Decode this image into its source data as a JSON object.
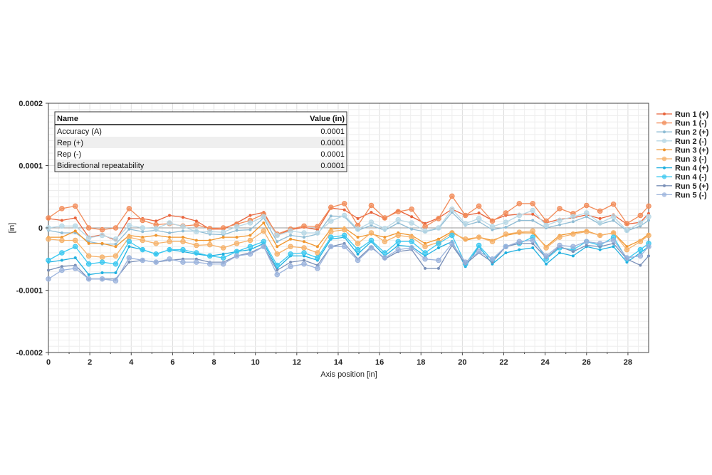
{
  "chart_data": {
    "type": "line",
    "title": "",
    "xlabel": "Axis position [in]",
    "ylabel": "[in]",
    "xlim": [
      0,
      29
    ],
    "ylim": [
      -0.0002,
      0.0002
    ],
    "x_ticks": [
      0,
      2,
      4,
      6,
      8,
      10,
      12,
      14,
      16,
      18,
      20,
      22,
      24,
      26,
      28
    ],
    "x_tick_labels": [
      "0",
      "2",
      "4",
      "6",
      "8",
      "10",
      "12",
      "14",
      "16",
      "18",
      "20",
      "22",
      "24",
      "26",
      "28"
    ],
    "y_ticks": [
      -0.0002,
      -0.0001,
      0,
      0.0001,
      0.0002
    ],
    "y_tick_labels": [
      "-0.0002",
      "-0.0001",
      "0",
      "0.0001",
      "0.0002"
    ],
    "grid": true,
    "legend_position": "right",
    "x": [
      0,
      0.65,
      1.3,
      1.95,
      2.6,
      3.25,
      3.9,
      4.55,
      5.2,
      5.85,
      6.5,
      7.15,
      7.8,
      8.45,
      9.1,
      9.75,
      10.4,
      11.05,
      11.7,
      12.35,
      13,
      13.65,
      14.3,
      14.95,
      15.6,
      16.25,
      16.9,
      17.55,
      18.2,
      18.85,
      19.5,
      20.15,
      20.8,
      21.45,
      22.1,
      22.75,
      23.4,
      24.05,
      24.7,
      25.35,
      26,
      26.65,
      27.3,
      27.95,
      28.6,
      29
    ],
    "series": [
      {
        "name": "Run 1 (+)",
        "color": "#e8643c",
        "marker": "small",
        "values": [
          1.5e-05,
          1.2e-05,
          1.6e-05,
          -1.5e-05,
          -1.1e-05,
          -2e-05,
          1.5e-05,
          1.5e-05,
          1.1e-05,
          2e-05,
          1.7e-05,
          1.1e-05,
          -2e-06,
          -2e-06,
          8e-06,
          2e-05,
          2.5e-05,
          -1.2e-05,
          -3e-06,
          1e-06,
          -3e-06,
          3.2e-05,
          2.9e-05,
          1.5e-05,
          2.5e-05,
          1.5e-05,
          2.8e-05,
          1.8e-05,
          7e-06,
          1.6e-05,
          3e-05,
          2e-05,
          2.4e-05,
          1.2e-05,
          2e-05,
          2.2e-05,
          2.2e-05,
          8e-06,
          1.4e-05,
          1.6e-05,
          2.1e-05,
          1.5e-05,
          2.1e-05,
          6e-06,
          9e-06,
          2.3e-05
        ]
      },
      {
        "name": "Run 1 (-)",
        "color": "#f28c5a",
        "marker": "large",
        "values": [
          1.6e-05,
          3.1e-05,
          3.5e-05,
          0.0,
          -3e-06,
          0.0,
          3.1e-05,
          1.2e-05,
          5e-06,
          7e-06,
          3e-06,
          5e-06,
          -1e-06,
          0.0,
          6e-06,
          1.2e-05,
          2.2e-05,
          -1e-05,
          -2e-06,
          3e-06,
          2e-06,
          3.3e-05,
          3.9e-05,
          4e-06,
          3.6e-05,
          1.6e-05,
          2.6e-05,
          3e-05,
          2e-06,
          1.5e-05,
          5.1e-05,
          2e-05,
          3.5e-05,
          1.1e-05,
          2.4e-05,
          3.9e-05,
          3.9e-05,
          1.1e-05,
          3.1e-05,
          2.3e-05,
          3.6e-05,
          2.7e-05,
          3.8e-05,
          7e-06,
          2e-05,
          3.5e-05
        ]
      },
      {
        "name": "Run 2 (+)",
        "color": "#8fbcd4",
        "marker": "small",
        "values": [
          -4e-06,
          -8e-06,
          -8e-06,
          -2.2e-05,
          -2.6e-05,
          -2.6e-05,
          -2e-06,
          -6e-06,
          -4e-06,
          -8e-06,
          -5e-06,
          -5e-06,
          -1e-05,
          -1.1e-05,
          -4e-06,
          -3e-06,
          1.6e-05,
          -2.2e-05,
          -1.2e-05,
          -1.5e-05,
          -1e-05,
          1.9e-05,
          1.8e-05,
          -4e-06,
          4e-06,
          -4e-06,
          8e-06,
          -2e-06,
          -6e-06,
          -1e-06,
          2.5e-05,
          4e-06,
          1e-05,
          -3e-06,
          1e-06,
          1.2e-05,
          1.2e-05,
          0.0,
          5e-06,
          1e-05,
          1.8e-05,
          6e-06,
          1.2e-05,
          -5e-06,
          3e-06,
          1.2e-05
        ]
      },
      {
        "name": "Run 2 (-)",
        "color": "#b8d8e6",
        "marker": "large",
        "values": [
          0.0,
          3e-06,
          3e-06,
          -1.6e-05,
          -1.2e-05,
          -1.8e-05,
          4e-06,
          0.0,
          -1e-06,
          8e-06,
          2e-06,
          -6e-06,
          -6e-06,
          -7e-06,
          2e-06,
          8e-06,
          1.8e-05,
          -1.2e-05,
          -5e-06,
          -8e-06,
          -8e-06,
          1.1e-05,
          2e-05,
          -2e-06,
          9e-06,
          -1e-06,
          1.3e-05,
          8e-06,
          -5e-06,
          0.0,
          3e-05,
          7e-06,
          1.5e-05,
          2e-06,
          9e-06,
          2e-05,
          2.8e-05,
          4e-06,
          1.2e-05,
          1.8e-05,
          2.4e-05,
          8e-06,
          1.8e-05,
          -4e-06,
          8e-06,
          1.8e-05
        ]
      },
      {
        "name": "Run 3 (+)",
        "color": "#f0962e",
        "marker": "small",
        "values": [
          -1.5e-05,
          -1.5e-05,
          -5e-06,
          -2.5e-05,
          -2.5e-05,
          -3e-05,
          -1.2e-05,
          -1.5e-05,
          -1.2e-05,
          -1.5e-05,
          -1.5e-05,
          -2e-05,
          -2e-05,
          -1.5e-05,
          -1.5e-05,
          -1.2e-05,
          8e-06,
          -3e-05,
          -1.8e-05,
          -2.2e-05,
          -3e-05,
          -2e-06,
          0.0,
          -1.5e-05,
          -1e-05,
          -1.5e-05,
          -8e-06,
          -1.2e-05,
          -2.5e-05,
          -1.8e-05,
          -6e-06,
          -2e-05,
          -1.5e-05,
          -2e-05,
          -1.2e-05,
          -8e-06,
          -8e-06,
          -3e-05,
          -1.2e-05,
          -8e-06,
          -5e-06,
          -1.2e-05,
          -8e-06,
          -3e-05,
          -2e-05,
          -1e-05
        ]
      },
      {
        "name": "Run 3 (-)",
        "color": "#f5b26b",
        "marker": "large",
        "values": [
          -1.8e-05,
          -2e-05,
          -2e-05,
          -4.5e-05,
          -4.7e-05,
          -4.5e-05,
          -1.5e-05,
          -2e-05,
          -2.5e-05,
          -2.2e-05,
          -2.2e-05,
          -2.8e-05,
          -2.7e-05,
          -3.2e-05,
          -2.5e-05,
          -2e-05,
          -5e-06,
          -4.2e-05,
          -3e-05,
          -3.2e-05,
          -4e-05,
          -6e-06,
          -3e-06,
          -2.5e-05,
          -8e-06,
          -2.2e-05,
          -1.2e-05,
          -1.5e-05,
          -3e-05,
          -2.3e-05,
          -8e-06,
          -1.8e-05,
          -1.5e-05,
          -2.2e-05,
          -1e-05,
          -7e-06,
          -5e-06,
          -3.2e-05,
          -1.5e-05,
          -1e-05,
          -6e-06,
          -1.2e-05,
          -8e-06,
          -3.5e-05,
          -2.2e-05,
          -1.2e-05
        ]
      },
      {
        "name": "Run 4 (+)",
        "color": "#1fb0e0",
        "marker": "small",
        "values": [
          -5.5e-05,
          -5.2e-05,
          -4.8e-05,
          -7.5e-05,
          -7.2e-05,
          -7.2e-05,
          -3e-05,
          -3.5e-05,
          -4.2e-05,
          -3.5e-05,
          -3.8e-05,
          -4.2e-05,
          -4.5e-05,
          -4.2e-05,
          -3.8e-05,
          -3.5e-05,
          -2.5e-05,
          -6.5e-05,
          -4.5e-05,
          -4.5e-05,
          -5.2e-05,
          -1.8e-05,
          -1.5e-05,
          -4.2e-05,
          -2.2e-05,
          -4.5e-05,
          -2.8e-05,
          -3e-05,
          -4.5e-05,
          -3.2e-05,
          -2.2e-05,
          -6.2e-05,
          -3e-05,
          -5.8e-05,
          -4e-05,
          -3.5e-05,
          -3.2e-05,
          -5.8e-05,
          -4e-05,
          -4.5e-05,
          -3e-05,
          -3.5e-05,
          -3e-05,
          -5.5e-05,
          -4e-05,
          -3e-05
        ]
      },
      {
        "name": "Run 4 (-)",
        "color": "#3cc8f0",
        "marker": "large",
        "values": [
          -5.2e-05,
          -4e-05,
          -3e-05,
          -5.8e-05,
          -5.5e-05,
          -5.8e-05,
          -2.2e-05,
          -3.5e-05,
          -4.2e-05,
          -3.5e-05,
          -3.5e-05,
          -4e-05,
          -4.5e-05,
          -4.8e-05,
          -3.8e-05,
          -3e-05,
          -2.2e-05,
          -6e-05,
          -4.2e-05,
          -4e-05,
          -4.8e-05,
          -1.5e-05,
          -1.2e-05,
          -3.5e-05,
          -2e-05,
          -4e-05,
          -2.2e-05,
          -2.2e-05,
          -4e-05,
          -2.5e-05,
          -1.2e-05,
          -5.8e-05,
          -2.8e-05,
          -5.2e-05,
          -3e-05,
          -2.5e-05,
          -1.5e-05,
          -5e-05,
          -3.2e-05,
          -3.5e-05,
          -2.2e-05,
          -2.8e-05,
          -1.5e-05,
          -5e-05,
          -3.5e-05,
          -2.5e-05
        ]
      },
      {
        "name": "Run 5 (+)",
        "color": "#7a90b8",
        "marker": "small",
        "values": [
          -6.8e-05,
          -6.2e-05,
          -6e-05,
          -8.2e-05,
          -8.2e-05,
          -8.2e-05,
          -5.5e-05,
          -5.2e-05,
          -5.5e-05,
          -5.2e-05,
          -5e-05,
          -5e-05,
          -5.5e-05,
          -5.5e-05,
          -4.5e-05,
          -4e-05,
          -3e-05,
          -6.8e-05,
          -5.5e-05,
          -5.2e-05,
          -6e-05,
          -3e-05,
          -2.5e-05,
          -5e-05,
          -3e-05,
          -5e-05,
          -3.8e-05,
          -3.5e-05,
          -6.5e-05,
          -6.5e-05,
          -2.8e-05,
          -5.8e-05,
          -4e-05,
          -5.5e-05,
          -3e-05,
          -2.5e-05,
          -2.5e-05,
          -4.8e-05,
          -3e-05,
          -3.8e-05,
          -2.8e-05,
          -3e-05,
          -2.5e-05,
          -5e-05,
          -6e-05,
          -4.5e-05
        ]
      },
      {
        "name": "Run 5 (-)",
        "color": "#9bb3dc",
        "marker": "large",
        "values": [
          -8.2e-05,
          -6.8e-05,
          -6.5e-05,
          -8.2e-05,
          -8.2e-05,
          -8.5e-05,
          -4.8e-05,
          -5.2e-05,
          -5.5e-05,
          -5e-05,
          -5.5e-05,
          -5.5e-05,
          -5.8e-05,
          -5.8e-05,
          -4.5e-05,
          -4.2e-05,
          -3e-05,
          -7.5e-05,
          -6.2e-05,
          -5.8e-05,
          -6.5e-05,
          -3e-05,
          -3e-05,
          -5.2e-05,
          -3.2e-05,
          -4.8e-05,
          -3.5e-05,
          -3.2e-05,
          -5e-05,
          -5.2e-05,
          -2.5e-05,
          -5.5e-05,
          -3.8e-05,
          -5e-05,
          -3e-05,
          -2.2e-05,
          -2e-05,
          -4.5e-05,
          -2.8e-05,
          -3e-05,
          -2.2e-05,
          -2.5e-05,
          -2e-05,
          -4.8e-05,
          -4.5e-05,
          -3e-05
        ]
      }
    ]
  },
  "stats_table": {
    "header_name": "Name",
    "header_value": "Value (in)",
    "rows": [
      {
        "name": "Accuracy (A)",
        "value": "0.0001"
      },
      {
        "name": "Rep (+)",
        "value": "0.0001"
      },
      {
        "name": "Rep (-)",
        "value": "0.0001"
      },
      {
        "name": "Bidirectional repeatability",
        "value": "0.0001"
      }
    ]
  }
}
